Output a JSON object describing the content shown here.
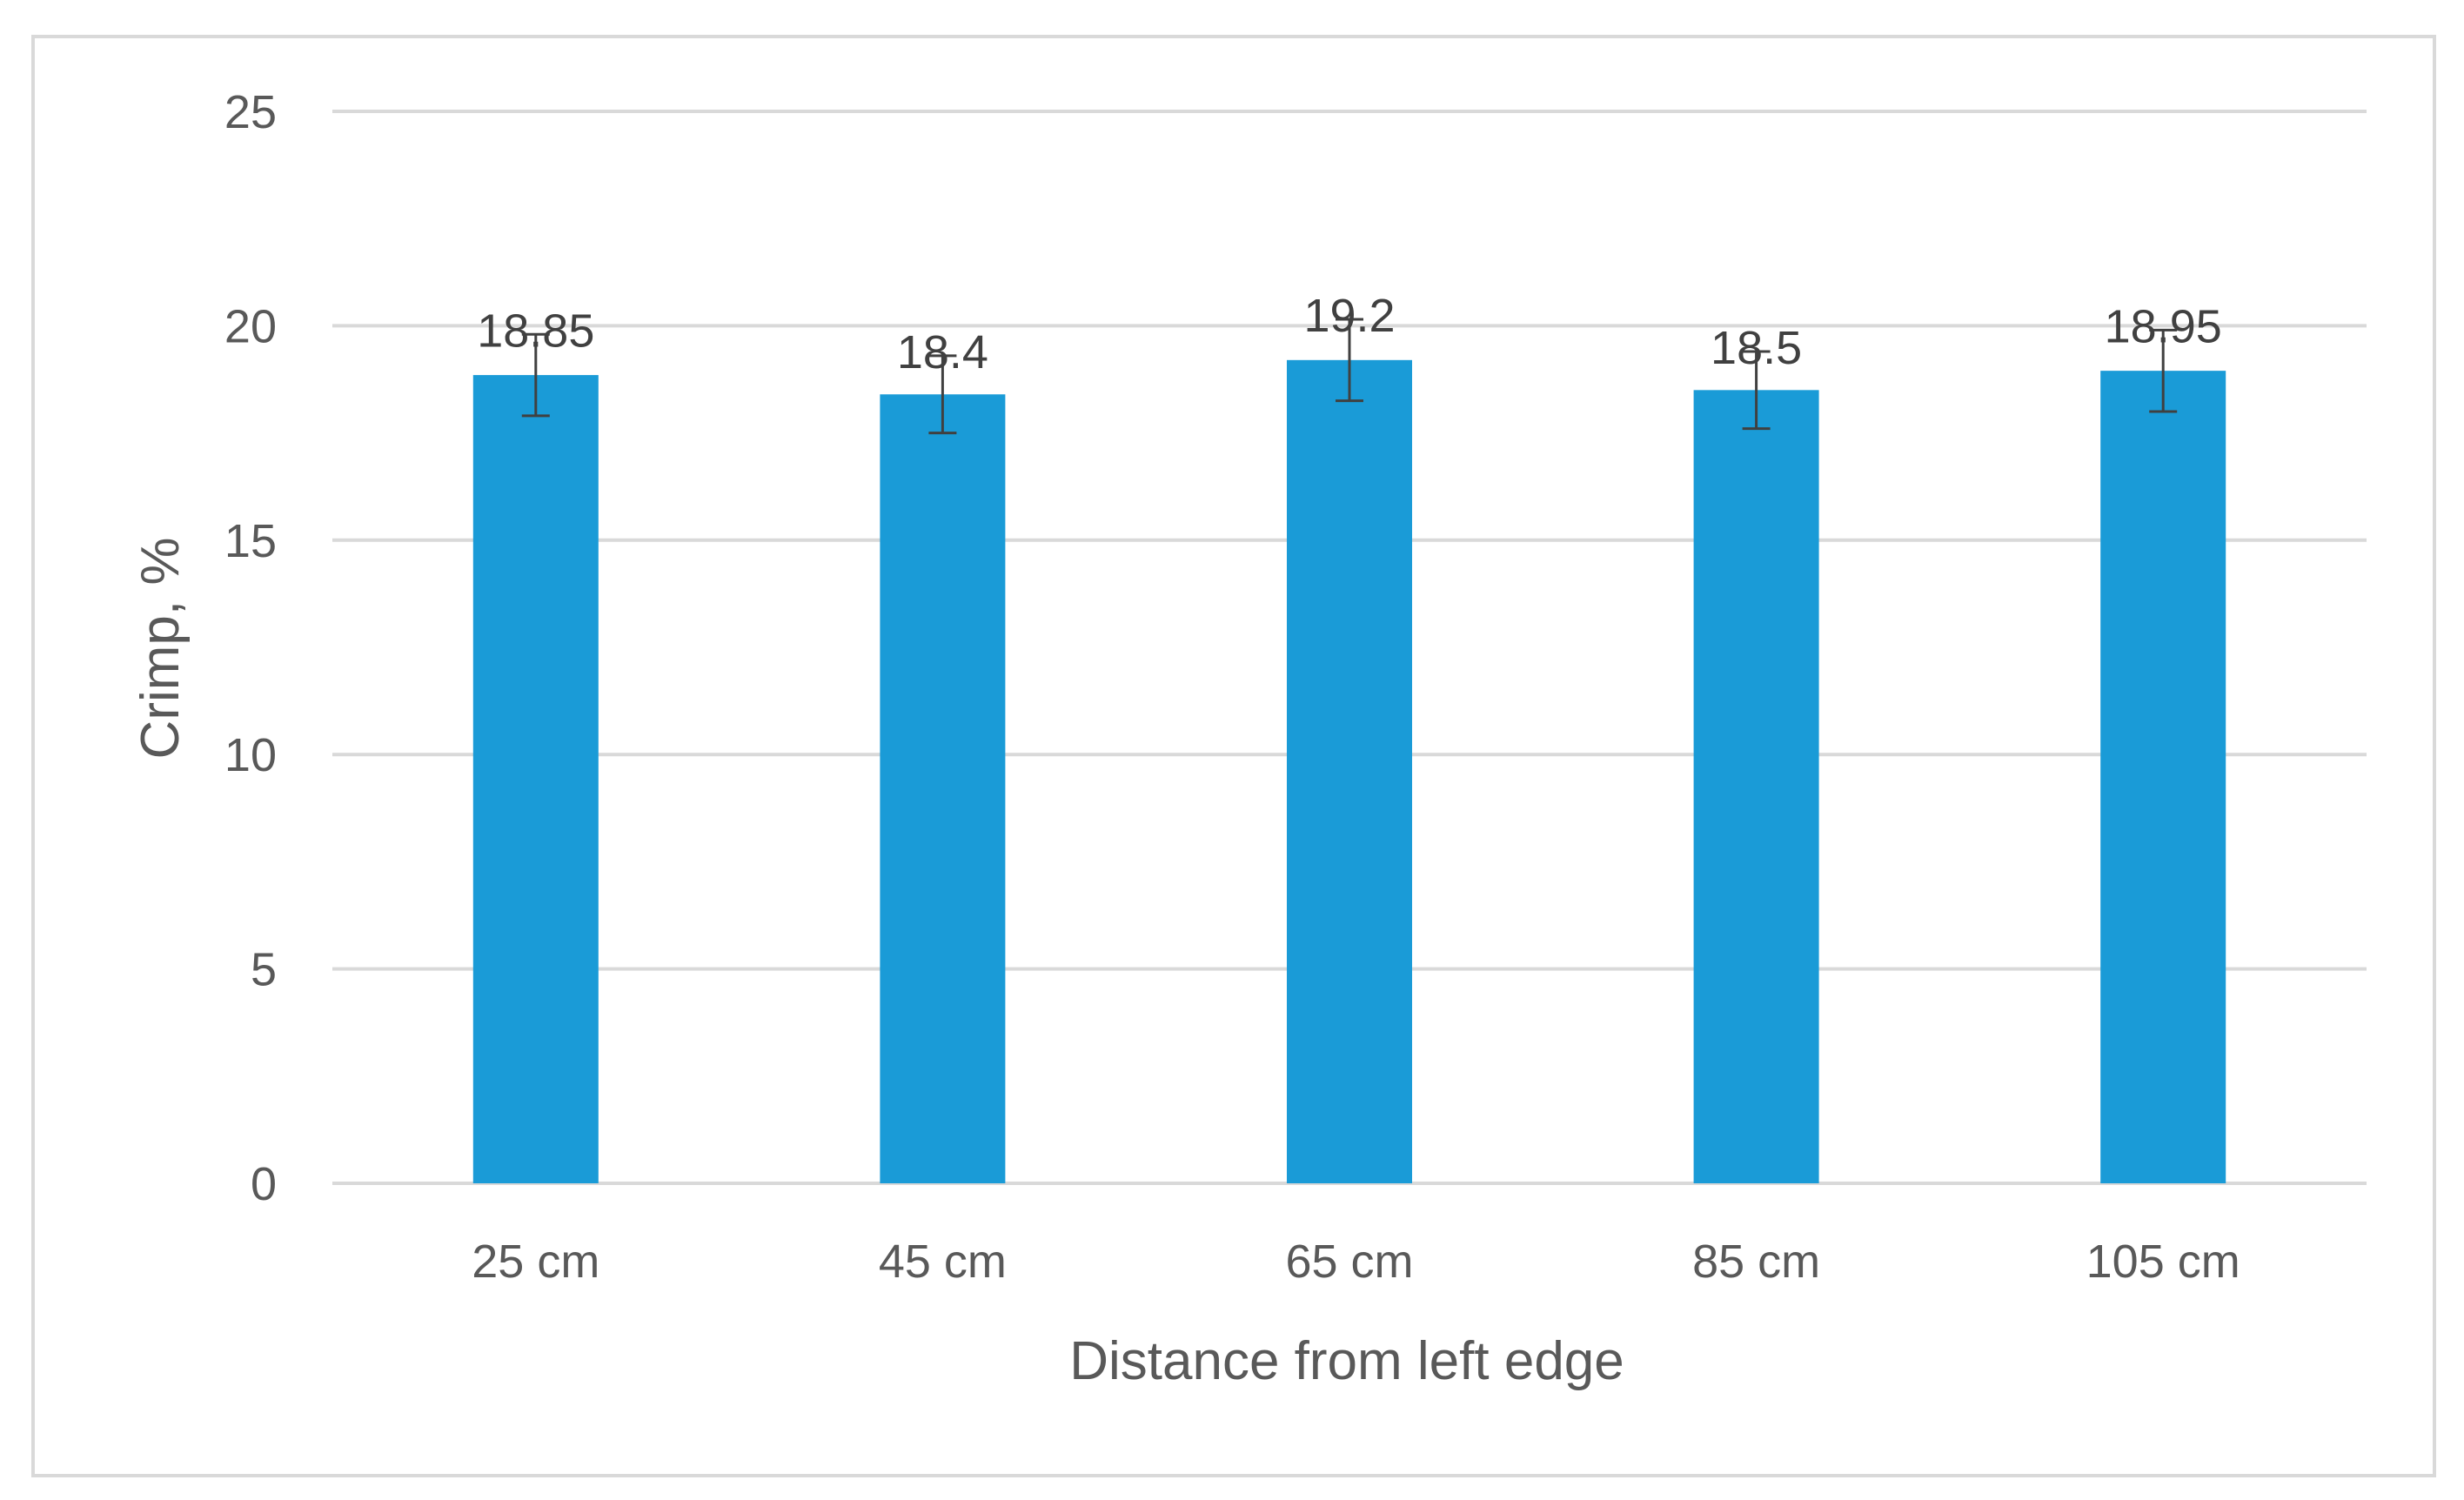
{
  "chart_data": {
    "type": "bar",
    "categories": [
      "25 cm",
      "45 cm",
      "65 cm",
      "85 cm",
      "105 cm"
    ],
    "series": [
      {
        "values": [
          18.85,
          18.4,
          19.2,
          18.5,
          18.95
        ],
        "error": [
          0.95,
          0.9,
          0.95,
          0.9,
          0.95
        ]
      }
    ],
    "data_labels": [
      "18.85",
      "18.4",
      "19.2",
      "18.5",
      "18.95"
    ],
    "title": "",
    "xlabel": "Distance from left edge",
    "ylabel": "Crimp, %",
    "ylim": [
      0,
      25
    ],
    "yticks": [
      0,
      5,
      10,
      15,
      20,
      25
    ],
    "ytick_labels": [
      "0",
      "5",
      "10",
      "15",
      "20",
      "25"
    ],
    "grid": true,
    "legend": "none",
    "colors": {
      "bar": "#1a9bd7",
      "grid": "#d9d9d9",
      "error_bar": "#404040",
      "text": "#595959",
      "border": "#d9d9d9"
    }
  }
}
